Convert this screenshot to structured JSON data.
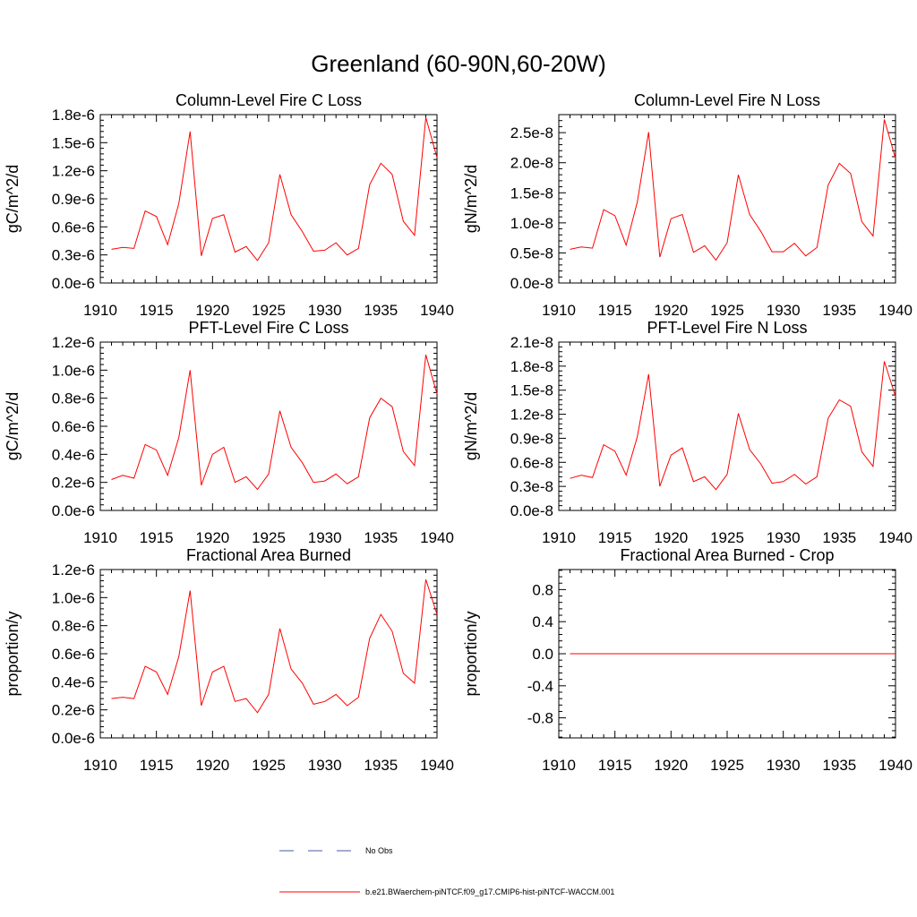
{
  "figure": {
    "title": "Greenland (60-90N,60-20W)"
  },
  "colors": {
    "model_line": "#ff0000",
    "obs_line": "#4a5aa0",
    "axis": "#000000"
  },
  "legend": {
    "items": [
      {
        "label": "No Obs",
        "style": "dashed",
        "color": "#4a5aa0"
      },
      {
        "label": "b.e21.BWaerchem-piNTCF.f09_g17.CMIP6-hist-piNTCF-WACCM.001",
        "style": "solid",
        "color": "#ff0000"
      }
    ]
  },
  "chart_data": [
    {
      "type": "line",
      "title": "Column-Level Fire C Loss",
      "ylabel": "gC/m^2/d",
      "xlim": [
        1910,
        1940
      ],
      "ylim": [
        0,
        1.8e-06
      ],
      "xticks": [
        "1910",
        "1915",
        "1920",
        "1925",
        "1930",
        "1935",
        "1940"
      ],
      "yticks": [
        "0.0e-6",
        "0.3e-6",
        "0.6e-6",
        "0.9e-6",
        "1.2e-6",
        "1.5e-6",
        "1.8e-6"
      ],
      "x": [
        1911,
        1912,
        1913,
        1914,
        1915,
        1916,
        1917,
        1918,
        1919,
        1920,
        1921,
        1922,
        1923,
        1924,
        1925,
        1926,
        1927,
        1928,
        1929,
        1930,
        1931,
        1932,
        1933,
        1934,
        1935,
        1936,
        1937,
        1938,
        1939,
        1940
      ],
      "series": [
        {
          "values": [
            3.6e-07,
            3.8e-07,
            3.7e-07,
            7.7e-07,
            7.1e-07,
            4.1e-07,
            8.5e-07,
            1.62e-06,
            2.9e-07,
            6.9e-07,
            7.3e-07,
            3.3e-07,
            3.9e-07,
            2.4e-07,
            4.3e-07,
            1.16e-06,
            7.3e-07,
            5.5e-07,
            3.4e-07,
            3.5e-07,
            4.3e-07,
            3e-07,
            3.7e-07,
            1.05e-06,
            1.28e-06,
            1.16e-06,
            6.6e-07,
            5.1e-07,
            1.77e-06,
            1.34e-06
          ]
        }
      ]
    },
    {
      "type": "line",
      "title": "Column-Level Fire N Loss",
      "ylabel": "gN/m^2/d",
      "xlim": [
        1910,
        1940
      ],
      "ylim": [
        0,
        2.8e-08
      ],
      "xticks": [
        "1910",
        "1915",
        "1920",
        "1925",
        "1930",
        "1935",
        "1940"
      ],
      "yticks": [
        "0.0e-8",
        "0.5e-8",
        "1.0e-8",
        "1.5e-8",
        "2.0e-8",
        "2.5e-8"
      ],
      "ytick_values": [
        0,
        5e-09,
        1e-08,
        1.5e-08,
        2e-08,
        2.5e-08
      ],
      "x": [
        1911,
        1912,
        1913,
        1914,
        1915,
        1916,
        1917,
        1918,
        1919,
        1920,
        1921,
        1922,
        1923,
        1924,
        1925,
        1926,
        1927,
        1928,
        1929,
        1930,
        1931,
        1932,
        1933,
        1934,
        1935,
        1936,
        1937,
        1938,
        1939,
        1940
      ],
      "series": [
        {
          "values": [
            5.6e-09,
            6e-09,
            5.8e-09,
            1.22e-08,
            1.12e-08,
            6.3e-09,
            1.35e-08,
            2.51e-08,
            4.3e-09,
            1.07e-08,
            1.14e-08,
            5.1e-09,
            6.2e-09,
            3.8e-09,
            6.7e-09,
            1.8e-08,
            1.14e-08,
            8.6e-09,
            5.2e-09,
            5.2e-09,
            6.6e-09,
            4.5e-09,
            5.9e-09,
            1.63e-08,
            1.99e-08,
            1.82e-08,
            1.02e-08,
            7.8e-09,
            2.72e-08,
            2.07e-08
          ]
        }
      ]
    },
    {
      "type": "line",
      "title": "PFT-Level Fire C Loss",
      "ylabel": "gC/m^2/d",
      "xlim": [
        1910,
        1940
      ],
      "ylim": [
        0,
        1.2e-06
      ],
      "xticks": [
        "1910",
        "1915",
        "1920",
        "1925",
        "1930",
        "1935",
        "1940"
      ],
      "yticks": [
        "0.0e-6",
        "0.2e-6",
        "0.4e-6",
        "0.6e-6",
        "0.8e-6",
        "1.0e-6",
        "1.2e-6"
      ],
      "x": [
        1911,
        1912,
        1913,
        1914,
        1915,
        1916,
        1917,
        1918,
        1919,
        1920,
        1921,
        1922,
        1923,
        1924,
        1925,
        1926,
        1927,
        1928,
        1929,
        1930,
        1931,
        1932,
        1933,
        1934,
        1935,
        1936,
        1937,
        1938,
        1939,
        1940
      ],
      "series": [
        {
          "values": [
            2.2e-07,
            2.5e-07,
            2.3e-07,
            4.7e-07,
            4.3e-07,
            2.5e-07,
            5.2e-07,
            1e-06,
            1.8e-07,
            4e-07,
            4.5e-07,
            2e-07,
            2.4e-07,
            1.5e-07,
            2.6e-07,
            7.1e-07,
            4.5e-07,
            3.4e-07,
            2e-07,
            2.1e-07,
            2.6e-07,
            1.9e-07,
            2.4e-07,
            6.6e-07,
            8e-07,
            7.4e-07,
            4.2e-07,
            3.2e-07,
            1.11e-06,
            8.3e-07
          ]
        }
      ]
    },
    {
      "type": "line",
      "title": "PFT-Level Fire N Loss",
      "ylabel": "gN/m^2/d",
      "xlim": [
        1910,
        1940
      ],
      "ylim": [
        0,
        2.1e-08
      ],
      "xticks": [
        "1910",
        "1915",
        "1920",
        "1925",
        "1930",
        "1935",
        "1940"
      ],
      "yticks": [
        "0.0e-8",
        "0.3e-8",
        "0.6e-8",
        "0.9e-8",
        "1.2e-8",
        "1.5e-8",
        "1.8e-8",
        "2.1e-8"
      ],
      "x": [
        1911,
        1912,
        1913,
        1914,
        1915,
        1916,
        1917,
        1918,
        1919,
        1920,
        1921,
        1922,
        1923,
        1924,
        1925,
        1926,
        1927,
        1928,
        1929,
        1930,
        1931,
        1932,
        1933,
        1934,
        1935,
        1936,
        1937,
        1938,
        1939,
        1940
      ],
      "series": [
        {
          "values": [
            4e-09,
            4.4e-09,
            4.1e-09,
            8.2e-09,
            7.4e-09,
            4.4e-09,
            9.2e-09,
            1.7e-08,
            3e-09,
            6.9e-09,
            7.8e-09,
            3.6e-09,
            4.2e-09,
            2.6e-09,
            4.5e-09,
            1.21e-08,
            7.6e-09,
            5.8e-09,
            3.4e-09,
            3.6e-09,
            4.5e-09,
            3.3e-09,
            4.2e-09,
            1.15e-08,
            1.38e-08,
            1.3e-08,
            7.3e-09,
            5.5e-09,
            1.86e-08,
            1.42e-08
          ]
        }
      ]
    },
    {
      "type": "line",
      "title": "Fractional Area Burned",
      "ylabel": "proportion/y",
      "xlim": [
        1910,
        1940
      ],
      "ylim": [
        0,
        1.2e-06
      ],
      "xticks": [
        "1910",
        "1915",
        "1920",
        "1925",
        "1930",
        "1935",
        "1940"
      ],
      "yticks": [
        "0.0e-6",
        "0.2e-6",
        "0.4e-6",
        "0.6e-6",
        "0.8e-6",
        "1.0e-6",
        "1.2e-6"
      ],
      "x": [
        1911,
        1912,
        1913,
        1914,
        1915,
        1916,
        1917,
        1918,
        1919,
        1920,
        1921,
        1922,
        1923,
        1924,
        1925,
        1926,
        1927,
        1928,
        1929,
        1930,
        1931,
        1932,
        1933,
        1934,
        1935,
        1936,
        1937,
        1938,
        1939,
        1940
      ],
      "series": [
        {
          "values": [
            2.8e-07,
            2.9e-07,
            2.8e-07,
            5.1e-07,
            4.7e-07,
            3.1e-07,
            5.8e-07,
            1.05e-06,
            2.3e-07,
            4.7e-07,
            5.1e-07,
            2.6e-07,
            2.8e-07,
            1.8e-07,
            3.1e-07,
            7.8e-07,
            4.9e-07,
            3.9e-07,
            2.4e-07,
            2.6e-07,
            3.1e-07,
            2.3e-07,
            2.9e-07,
            7.1e-07,
            8.8e-07,
            7.6e-07,
            4.6e-07,
            3.9e-07,
            1.13e-06,
            8.8e-07
          ]
        }
      ]
    },
    {
      "type": "line",
      "title": "Fractional Area Burned - Crop",
      "ylabel": "proportion/y",
      "xlim": [
        1910,
        1940
      ],
      "ylim": [
        -1.05,
        1.05
      ],
      "xticks": [
        "1910",
        "1915",
        "1920",
        "1925",
        "1930",
        "1935",
        "1940"
      ],
      "yticks": [
        "-0.8",
        "-0.4",
        "0.0",
        "0.4",
        "0.8"
      ],
      "ytick_values": [
        -0.8,
        -0.4,
        0.0,
        0.4,
        0.8
      ],
      "x": [
        1911,
        1940
      ],
      "series": [
        {
          "values": [
            0,
            0
          ]
        }
      ]
    }
  ]
}
